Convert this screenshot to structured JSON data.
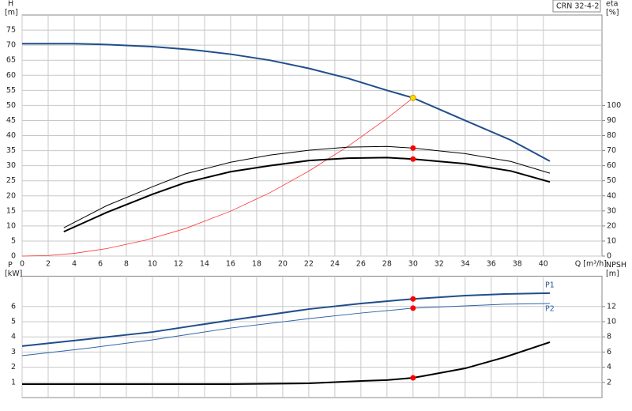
{
  "chart_data": [
    {
      "type": "line",
      "annotation": "CRN 32-4-2",
      "y_label": "H",
      "y_unit": "[m]",
      "y2_label": "eta",
      "y2_unit": "[%]",
      "xlabel": "Q [m³/h]",
      "xlim": [
        0,
        44.5
      ],
      "xticks": [
        0,
        2,
        4,
        6,
        8,
        10,
        12,
        14,
        16,
        18,
        20,
        22,
        24,
        26,
        28,
        30,
        32,
        34,
        36,
        38,
        40
      ],
      "ylim": [
        0,
        80
      ],
      "yticks": [
        0,
        5,
        10,
        15,
        20,
        25,
        30,
        35,
        40,
        45,
        50,
        55,
        60,
        65,
        70,
        75
      ],
      "y2lim": [
        0,
        160
      ],
      "y2ticks": [
        0,
        10,
        20,
        30,
        40,
        50,
        60,
        70,
        80,
        90,
        100
      ],
      "grid": true,
      "duty_x": 30,
      "series": [
        {
          "color": "#1f4e8c",
          "width": 2,
          "x": [
            0,
            4,
            6.5,
            10,
            13,
            16,
            19,
            22,
            25,
            28,
            30,
            34,
            37.5,
            40.5
          ],
          "values": [
            70.5,
            70.5,
            70.2,
            69.5,
            68.5,
            67,
            65,
            62.3,
            59,
            55,
            52.5,
            45,
            38.5,
            31.5
          ]
        },
        {
          "color": "#ff3333",
          "width": 0.8,
          "duty_color": "#ffd700",
          "x": [
            0,
            2,
            4,
            6.5,
            9.5,
            12.5,
            16,
            19,
            22,
            25,
            28,
            30
          ],
          "values": [
            0,
            0.2,
            0.9,
            2.5,
            5.3,
            9.1,
            14.9,
            21,
            28.2,
            36.4,
            45.7,
            52.5
          ]
        },
        {
          "color": "#000000",
          "width": 1,
          "axis": "y2",
          "duty_color": "#ff0000",
          "x": [
            3.2,
            6.5,
            10,
            12.5,
            16,
            19,
            22,
            25,
            28,
            30,
            34,
            37.5,
            40.5
          ],
          "values": [
            18.8,
            33.5,
            46,
            54.5,
            62.3,
            67,
            70.2,
            72.3,
            72.8,
            71.7,
            68,
            62.8,
            55
          ]
        },
        {
          "color": "#000000",
          "width": 2,
          "axis": "y2",
          "duty_color": "#ff0000",
          "x": [
            3.2,
            6.5,
            10,
            12.5,
            16,
            19,
            22,
            25,
            28,
            30,
            34,
            37.5,
            40.5
          ],
          "values": [
            16.2,
            29,
            41,
            48.7,
            56,
            60,
            63.4,
            65,
            65.4,
            64.4,
            61.3,
            56.5,
            49.2
          ]
        }
      ]
    },
    {
      "type": "line",
      "y_label": "P",
      "y_unit": "[kW]",
      "y2_label": "NPSH",
      "y2_unit": "[m]",
      "xlim": [
        0,
        44.5
      ],
      "xticks": [
        0,
        2,
        4,
        6,
        8,
        10,
        12,
        14,
        16,
        18,
        20,
        22,
        24,
        26,
        28,
        30,
        32,
        34,
        36,
        38,
        40
      ],
      "ylim": [
        0,
        8
      ],
      "yticks": [
        1,
        2,
        3,
        4,
        5,
        6
      ],
      "y2lim": [
        0,
        16
      ],
      "y2ticks": [
        2,
        4,
        6,
        8,
        10,
        12
      ],
      "grid": true,
      "duty_x": 30,
      "series": [
        {
          "name": "P1",
          "color": "#1f4e8c",
          "width": 2,
          "duty_color": "#ff0000",
          "x": [
            0,
            5,
            10,
            16,
            22,
            26,
            30,
            34,
            37,
            40.5
          ],
          "values": [
            3.39,
            3.85,
            4.32,
            5.1,
            5.83,
            6.2,
            6.5,
            6.72,
            6.82,
            6.88
          ]
        },
        {
          "name": "P2",
          "color": "#2f64a8",
          "width": 1,
          "duty_color": "#ff0000",
          "x": [
            0,
            5,
            10,
            16,
            22,
            26,
            30,
            34,
            37,
            40.5
          ],
          "values": [
            2.76,
            3.25,
            3.8,
            4.58,
            5.2,
            5.57,
            5.89,
            6.04,
            6.15,
            6.2
          ]
        },
        {
          "color": "#000000",
          "width": 2,
          "axis": "y2",
          "duty_color": "#ff0000",
          "x": [
            0,
            16,
            22,
            26,
            28,
            30,
            31,
            34,
            37,
            40.5
          ],
          "values": [
            1.77,
            1.77,
            1.87,
            2.19,
            2.3,
            2.6,
            2.9,
            3.85,
            5.3,
            7.3
          ]
        }
      ]
    }
  ]
}
